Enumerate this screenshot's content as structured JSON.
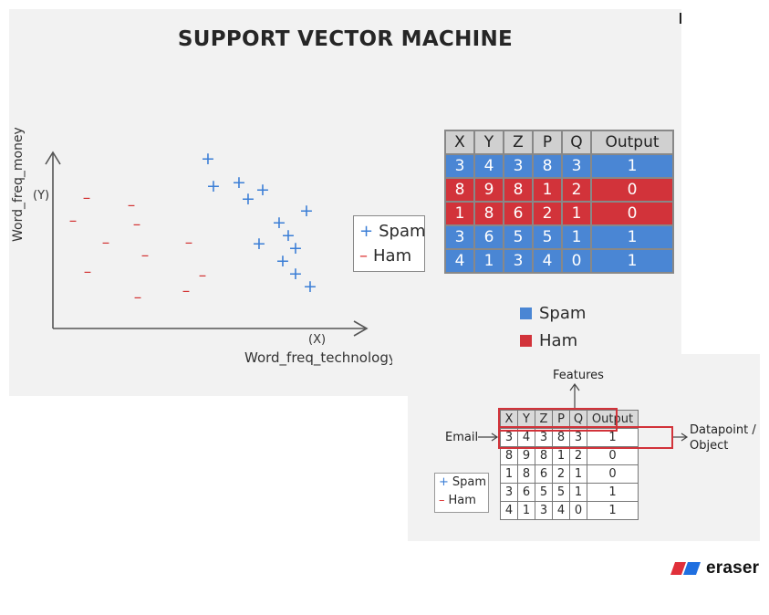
{
  "title": "SUPPORT VECTOR MACHINE",
  "plot": {
    "y_label": "Word_freq_money",
    "y_symbol": "(Y)",
    "x_label": "Word_freq_technology",
    "x_symbol": "(X)",
    "spam_marker": "+",
    "ham_marker": "–"
  },
  "legend_plot": {
    "spam": "Spam",
    "ham": "Ham"
  },
  "main_table": {
    "headers": [
      "X",
      "Y",
      "Z",
      "P",
      "Q",
      "Output"
    ],
    "rows": [
      {
        "class": "spam",
        "cells": [
          "3",
          "4",
          "3",
          "8",
          "3",
          "1"
        ]
      },
      {
        "class": "ham",
        "cells": [
          "8",
          "9",
          "8",
          "1",
          "2",
          "0"
        ]
      },
      {
        "class": "ham",
        "cells": [
          "1",
          "8",
          "6",
          "2",
          "1",
          "0"
        ]
      },
      {
        "class": "spam",
        "cells": [
          "3",
          "6",
          "5",
          "5",
          "1",
          "1"
        ]
      },
      {
        "class": "spam",
        "cells": [
          "4",
          "1",
          "3",
          "4",
          "0",
          "1"
        ]
      }
    ]
  },
  "legend_table": {
    "spam": "Spam",
    "ham": "Ham"
  },
  "annotated": {
    "features_label": "Features",
    "email_label": "Email",
    "datapoint_line1": "Datapoint /",
    "datapoint_line2": "Object",
    "headers": [
      "X",
      "Y",
      "Z",
      "P",
      "Q",
      "Output"
    ],
    "rows": [
      [
        "3",
        "4",
        "3",
        "8",
        "3",
        "1"
      ],
      [
        "8",
        "9",
        "8",
        "1",
        "2",
        "0"
      ],
      [
        "1",
        "8",
        "6",
        "2",
        "1",
        "0"
      ],
      [
        "3",
        "6",
        "5",
        "5",
        "1",
        "1"
      ],
      [
        "4",
        "1",
        "3",
        "4",
        "0",
        "1"
      ]
    ],
    "legend_spam": "Spam",
    "legend_ham": "Ham"
  },
  "brand": {
    "name": "eraser"
  },
  "colors": {
    "spam": "#4a86d4",
    "ham": "#d2333a",
    "plus": "#3b7ed6",
    "minus": "#d33333"
  }
}
